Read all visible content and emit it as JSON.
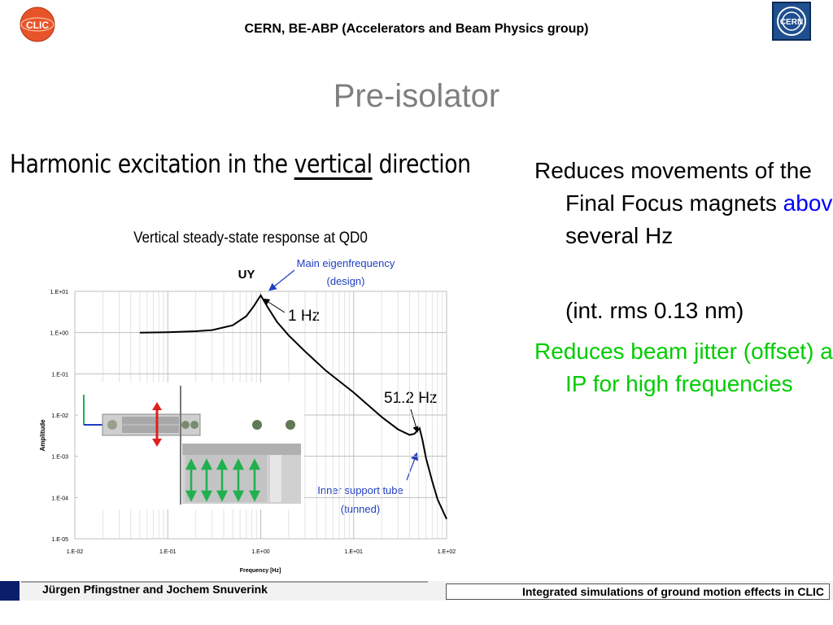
{
  "header": {
    "title": "CERN, BE-ABP (Accelerators and Beam Physics group)",
    "clic_logo_text": "CLIC",
    "cern_logo_text": "CERN",
    "clic_logo_icon": "clic-logo",
    "cern_logo_icon": "cern-logo"
  },
  "slide": {
    "title": "Pre-isolator"
  },
  "figure": {
    "heading_pre": "Harmonic excitation in the ",
    "heading_underlined": "vertical",
    "heading_post": " direction",
    "subtitle": "Vertical steady-state response at QD0",
    "label_uy": "UY",
    "annotation_main": "Main eigenfrequency",
    "annotation_main_sub": "(design)",
    "annotation_1hz": "1 Hz",
    "annotation_512hz": "51.2 Hz",
    "annotation_inner": "Inner support tube",
    "annotation_inner_sub": "(tunned)",
    "ylabel": "Amplitude",
    "xlabel": "Frequency [Hz]",
    "colors": {
      "annotation": "#1f3fbf",
      "curve": "#000000",
      "arrow_red": "#e02020",
      "arrow_green": "#20b050"
    }
  },
  "chart_data": {
    "type": "line",
    "x_scale": "log",
    "y_scale": "log",
    "xlim": [
      0.01,
      100
    ],
    "ylim": [
      1e-05,
      10
    ],
    "x_ticks": [
      "1.E-02",
      "1.E-01",
      "1.E+00",
      "1.E+01",
      "1.E+02"
    ],
    "y_ticks": [
      "1.E+01",
      "1.E+00",
      "1.E-01",
      "1.E-02",
      "1.E-03",
      "1.E-04",
      "1.E-05"
    ],
    "xlabel": "Frequency [Hz]",
    "ylabel": "Amplitude",
    "title": "UY",
    "grid": true,
    "series": [
      {
        "x": [
          0.05,
          0.1,
          0.2,
          0.3,
          0.5,
          0.7,
          0.85,
          1.0,
          1.2,
          1.5,
          2,
          3,
          5,
          10,
          20,
          30,
          40,
          45,
          51.2,
          55,
          60,
          70,
          80,
          100
        ],
        "y": [
          1.0,
          1.02,
          1.08,
          1.15,
          1.5,
          2.5,
          4.5,
          8.0,
          4.0,
          1.8,
          0.85,
          0.35,
          0.12,
          0.035,
          0.009,
          0.0045,
          0.0033,
          0.0035,
          0.0048,
          0.0025,
          0.0009,
          0.00025,
          9e-05,
          3e-05
        ]
      }
    ]
  },
  "bullets": {
    "p1_text": "Reduces movements of the Final Focus magnets ",
    "p1_highlight": "above",
    "p1_tail": " several Hz",
    "p2_text": "(int. rms 0.13 nm)",
    "p3_text": "Reduces beam jitter (offset) at IP for high frequencies"
  },
  "footer": {
    "left": "Jürgen Pfingstner and Jochem Snuverink",
    "right": "Integrated simulations of ground motion effects in CLIC"
  }
}
